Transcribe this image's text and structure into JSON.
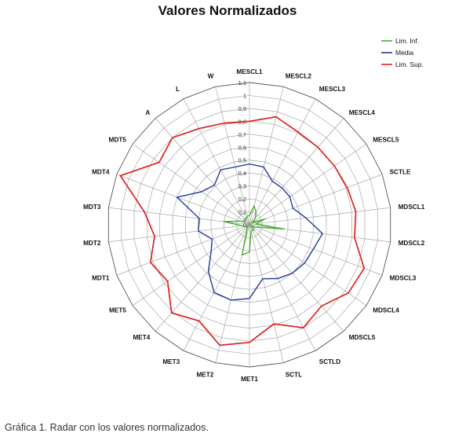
{
  "chart_data": {
    "type": "radar",
    "title": "Valores Normalizados",
    "axes": [
      "MESCL1",
      "MESCL2",
      "MESCL3",
      "MESCL4",
      "MESCL5",
      "SCTLE",
      "MDSCL1",
      "MDSCL2",
      "MDSCL3",
      "MDSCL4",
      "MDSCL5",
      "SCTLD",
      "SCTL",
      "MET1",
      "MET2",
      "MET3",
      "MET4",
      "MET5",
      "MDT1",
      "MDT2",
      "MDT3",
      "MDT4",
      "MDT5",
      "A",
      "L",
      "W"
    ],
    "ticks": [
      "0",
      "0,1",
      "0,2",
      "0,3",
      "0,4",
      "0,5",
      "0,6",
      "0,7",
      "0,8",
      "0,9",
      "1",
      "1,1"
    ],
    "rmax": 1.1,
    "grid": true,
    "legend_position": "top-right",
    "series": [
      {
        "name": "Lim. Inf.",
        "color": "#4aae32",
        "values": [
          0.07,
          0.15,
          0.11,
          0.07,
          0.03,
          0.13,
          0.05,
          0.27,
          0.05,
          0.02,
          0.05,
          0.05,
          0.05,
          0.21,
          0.24,
          0.04,
          0.03,
          0.02,
          0.04,
          0.06,
          0.2,
          0.08,
          0.04,
          0.06,
          0.05,
          0.07
        ]
      },
      {
        "name": "Media",
        "color": "#1f3a9a",
        "values": [
          0.47,
          0.46,
          0.38,
          0.38,
          0.38,
          0.36,
          0.44,
          0.57,
          0.53,
          0.52,
          0.5,
          0.47,
          0.43,
          0.57,
          0.6,
          0.59,
          0.48,
          0.36,
          0.31,
          0.4,
          0.39,
          0.6,
          0.45,
          0.41,
          0.48,
          0.46
        ]
      },
      {
        "name": "Lim. Sup.",
        "color": "#e02020",
        "values": [
          0.8,
          0.86,
          0.81,
          0.8,
          0.8,
          0.81,
          0.83,
          0.82,
          0.95,
          0.93,
          0.84,
          0.9,
          0.79,
          0.91,
          0.96,
          0.84,
          0.91,
          0.77,
          0.82,
          0.74,
          0.82,
          1.07,
          0.85,
          0.9,
          0.84,
          0.81
        ]
      }
    ]
  },
  "caption": "Gráfica 1. Radar con los valores normalizados."
}
